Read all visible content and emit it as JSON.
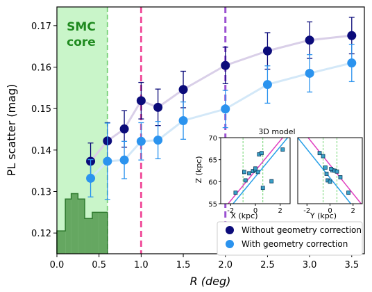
{
  "chart_data": {
    "type": "scatter",
    "xlabel": "R (deg)",
    "ylabel": "PL scatter (mag)",
    "xlim": [
      0.0,
      3.65
    ],
    "ylim": [
      0.115,
      0.1745
    ],
    "x_ticks": [
      "0.0",
      "0.5",
      "1.0",
      "1.5",
      "2.0",
      "2.5",
      "3.0",
      "3.5"
    ],
    "y_ticks": [
      "0.12",
      "0.13",
      "0.14",
      "0.15",
      "0.16",
      "0.17"
    ],
    "smc_core": {
      "label_line1": "SMC",
      "label_line2": "core",
      "x_range": [
        0.0,
        0.6
      ],
      "color": "#c9f5c9",
      "text_color": "#1f8a1f"
    },
    "vertical_lines": [
      {
        "x": 1.0,
        "color": "#f0509c"
      },
      {
        "x": 2.0,
        "color": "#9b50d2"
      }
    ],
    "histogram": {
      "color": "#5a9e55",
      "bins": [
        {
          "x0": 0.0,
          "x1": 0.1,
          "top": 0.1205
        },
        {
          "x0": 0.1,
          "x1": 0.17,
          "top": 0.1282
        },
        {
          "x0": 0.17,
          "x1": 0.25,
          "top": 0.1295
        },
        {
          "x0": 0.25,
          "x1": 0.33,
          "top": 0.1282
        },
        {
          "x0": 0.33,
          "x1": 0.42,
          "top": 0.1235
        },
        {
          "x0": 0.42,
          "x1": 0.5,
          "top": 0.125
        },
        {
          "x0": 0.5,
          "x1": 0.6,
          "top": 0.125
        }
      ]
    },
    "series": [
      {
        "name": "Without geometry correction",
        "color": "#0b0b7a",
        "line_color": "#d9cfe8",
        "x": [
          0.4,
          0.6,
          0.8,
          1.0,
          1.2,
          1.5,
          2.0,
          2.5,
          3.0,
          3.5
        ],
        "y": [
          0.1373,
          0.1422,
          0.1451,
          0.1519,
          0.1503,
          0.1546,
          0.1604,
          0.1639,
          0.1665,
          0.1676
        ],
        "err": [
          0.0044,
          0.0044,
          0.0044,
          0.0044,
          0.0044,
          0.0044,
          0.0044,
          0.0044,
          0.0044,
          0.0044
        ]
      },
      {
        "name": "With geometry correction",
        "color": "#2b93ee",
        "line_color": "#d3e8f8",
        "x": [
          0.4,
          0.6,
          0.8,
          1.0,
          1.2,
          1.5,
          2.0,
          2.5,
          3.0,
          3.5
        ],
        "y": [
          0.1332,
          0.1373,
          0.1376,
          0.1421,
          0.1424,
          0.1471,
          0.1499,
          0.1558,
          0.1585,
          0.161
        ],
        "err": [
          0.0045,
          0.0092,
          0.0045,
          0.0045,
          0.0045,
          0.0045,
          0.0045,
          0.0045,
          0.0045,
          0.0045
        ]
      }
    ],
    "legend_position": "bottom-right",
    "inset": {
      "title": "3D model",
      "ylabel": "Z (kpc)",
      "ylim": [
        55,
        70
      ],
      "y_ticks": [
        "70",
        "65",
        "60",
        "55"
      ],
      "panels": [
        {
          "xlabel": "X (kpc)",
          "xlim": [
            -2.8,
            2.8
          ],
          "x_ticks": [
            "-2",
            "0",
            "2"
          ],
          "points": [
            [
              -1.6,
              57.5
            ],
            [
              -0.9,
              62.2
            ],
            [
              -0.8,
              60.3
            ],
            [
              -0.5,
              61.9
            ],
            [
              -0.2,
              62.4
            ],
            [
              0.0,
              62.7
            ],
            [
              0.2,
              62.2
            ],
            [
              0.3,
              66.2
            ],
            [
              0.5,
              66.5
            ],
            [
              0.6,
              58.6
            ],
            [
              1.3,
              60.1
            ],
            [
              2.2,
              67.3
            ],
            [
              0.0,
              63.0
            ]
          ],
          "guides_x": [
            -1.0,
            0.6
          ],
          "lines": [
            {
              "color": "#e040c0",
              "x": [
                -2.2,
                2.2
              ],
              "y": [
                55.0,
                70.0
              ]
            },
            {
              "color": "#28a0e8",
              "x": [
                -1.8,
                2.6
              ],
              "y": [
                55.0,
                70.0
              ]
            }
          ]
        },
        {
          "xlabel": "Y (kpc)",
          "xlim": [
            -2.8,
            2.8
          ],
          "x_ticks": [
            "-2",
            "0",
            "2"
          ],
          "points": [
            [
              -0.9,
              66.5
            ],
            [
              -0.6,
              65.8
            ],
            [
              -0.4,
              63.2
            ],
            [
              -0.3,
              61.8
            ],
            [
              -0.2,
              60.3
            ],
            [
              0.0,
              60.0
            ],
            [
              0.2,
              62.6
            ],
            [
              0.4,
              62.5
            ],
            [
              0.6,
              62.3
            ],
            [
              0.9,
              61.0
            ],
            [
              1.6,
              57.5
            ],
            [
              0.1,
              62.9
            ]
          ],
          "guides_x": [
            -0.6,
            0.6
          ],
          "lines": [
            {
              "color": "#e040c0",
              "x": [
                -1.9,
                2.7
              ],
              "y": [
                70.0,
                55.0
              ]
            },
            {
              "color": "#28a0e8",
              "x": [
                -2.8,
                1.8
              ],
              "y": [
                70.0,
                55.0
              ]
            }
          ]
        }
      ]
    }
  }
}
